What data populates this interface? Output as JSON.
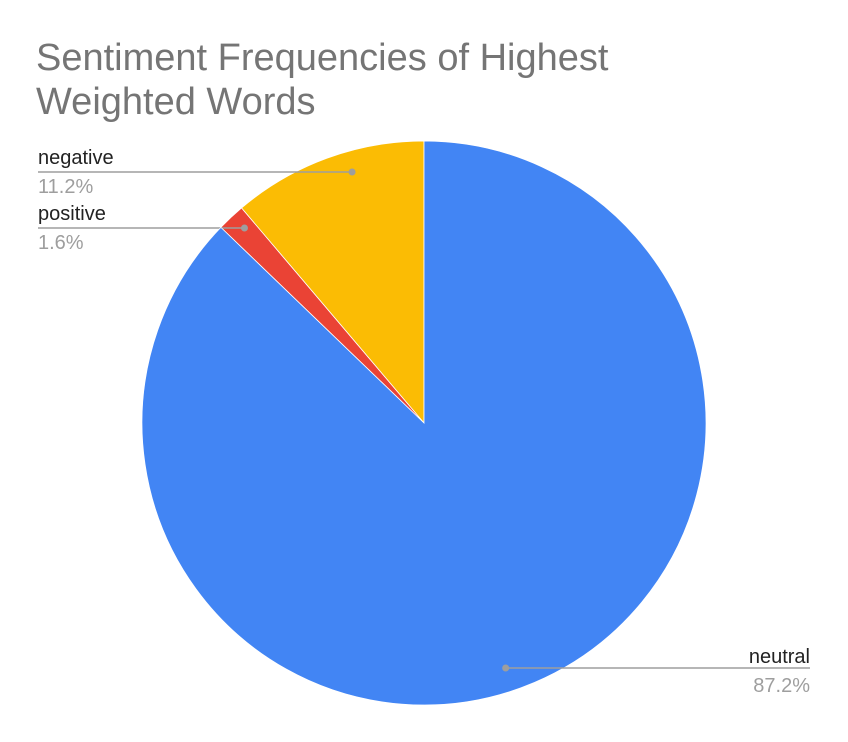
{
  "chart_data": {
    "type": "pie",
    "title": "Sentiment Frequencies of Highest Weighted Words",
    "title_lines": [
      "Sentiment Frequencies of Highest",
      "Weighted Words"
    ],
    "slices": [
      {
        "label": "negative",
        "value": 11.2,
        "value_label": "11.2%",
        "color": "#fbbc04",
        "label_side": "left"
      },
      {
        "label": "positive",
        "value": 1.6,
        "value_label": "1.6%",
        "color": "#ea4335",
        "label_side": "left"
      },
      {
        "label": "neutral",
        "value": 87.2,
        "value_label": "87.2%",
        "color": "#4285f4",
        "label_side": "right"
      }
    ],
    "start": "12 o'clock",
    "direction": "counterclockwise",
    "legend": "labeled slices with leader lines"
  }
}
